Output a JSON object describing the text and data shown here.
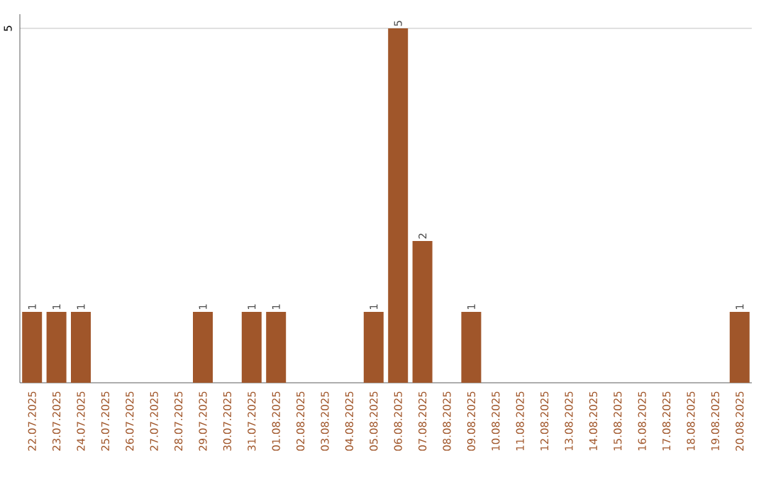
{
  "chart_data": {
    "type": "bar",
    "categories": [
      "22.07.2025",
      "23.07.2025",
      "24.07.2025",
      "25.07.2025",
      "26.07.2025",
      "27.07.2025",
      "28.07.2025",
      "29.07.2025",
      "30.07.2025",
      "31.07.2025",
      "01.08.2025",
      "02.08.2025",
      "03.08.2025",
      "04.08.2025",
      "05.08.2025",
      "06.08.2025",
      "07.08.2025",
      "08.08.2025",
      "09.08.2025",
      "10.08.2025",
      "11.08.2025",
      "12.08.2025",
      "13.08.2025",
      "14.08.2025",
      "15.08.2025",
      "16.08.2025",
      "17.08.2025",
      "18.08.2025",
      "19.08.2025",
      "20.08.2025"
    ],
    "values": [
      1,
      1,
      1,
      0,
      0,
      0,
      0,
      1,
      0,
      1,
      1,
      0,
      0,
      0,
      1,
      5,
      2,
      0,
      1,
      0,
      0,
      0,
      0,
      0,
      0,
      0,
      0,
      0,
      0,
      1
    ],
    "value_labels": [
      "1",
      "1",
      "1",
      null,
      null,
      null,
      null,
      "1",
      null,
      "1",
      "1",
      null,
      null,
      null,
      "1",
      "5",
      "2",
      null,
      "1",
      null,
      null,
      null,
      null,
      null,
      null,
      null,
      null,
      null,
      null,
      "1"
    ],
    "color": "#a0562a",
    "ylim": [
      0,
      5.2
    ],
    "yticks": [
      5
    ],
    "grid": "y"
  }
}
